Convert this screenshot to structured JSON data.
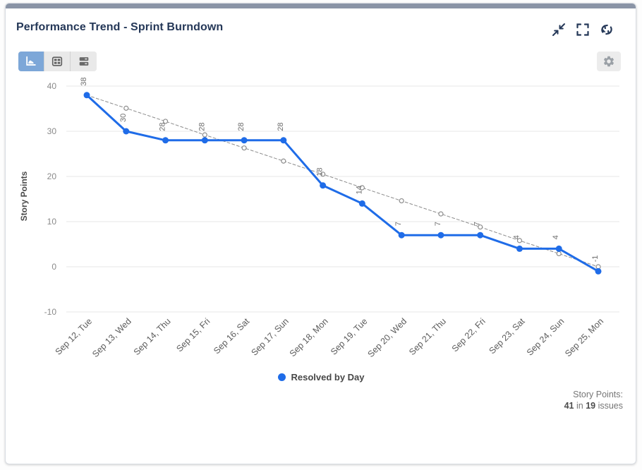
{
  "header": {
    "title": "Performance Trend - Sprint Burndown"
  },
  "toolbar": {
    "views": [
      "chart",
      "table",
      "list"
    ],
    "active_view": "chart"
  },
  "chart_data": {
    "type": "line",
    "title": "Performance Trend - Sprint Burndown",
    "categories": [
      "Sep 12, Tue",
      "Sep 13, Wed",
      "Sep 14, Thu",
      "Sep 15, Fri",
      "Sep 16, Sat",
      "Sep 17, Sun",
      "Sep 18, Mon",
      "Sep 19, Tue",
      "Sep 20, Wed",
      "Sep 21, Thu",
      "Sep 22, Fri",
      "Sep 23, Sat",
      "Sep 24, Sun",
      "Sep 25, Mon"
    ],
    "series": [
      {
        "name": "Resolved by Day",
        "color": "#1f6ce8",
        "style": "solid",
        "data_labels": true,
        "values": [
          38,
          30,
          28,
          28,
          28,
          28,
          18,
          14,
          7,
          7,
          7,
          4,
          4,
          -1
        ]
      },
      {
        "name": "Guideline",
        "color": "#8c8c8c",
        "style": "dashed",
        "data_labels": false,
        "values": [
          38,
          35.1,
          32.2,
          29.2,
          26.3,
          23.4,
          20.5,
          17.5,
          14.6,
          11.7,
          8.8,
          5.8,
          2.9,
          0
        ]
      }
    ],
    "ylabel": "Story Points",
    "yticks": [
      40,
      30,
      20,
      10,
      0,
      -10
    ],
    "ylim": [
      -10,
      40
    ],
    "grid": "horizontal",
    "legend_position": "bottom"
  },
  "legend": {
    "label": "Resolved by Day",
    "color": "#1f6ce8"
  },
  "summary": {
    "label": "Story Points:",
    "points": "41",
    "in_sep": " in ",
    "issues": "19",
    "issues_suffix": " issues"
  },
  "colors": {
    "accent_bar": "#8a94a6",
    "title_text": "#253858",
    "active_view_bg": "#7da7d8",
    "line_blue": "#1f6ce8",
    "guideline_gray": "#8c8c8c"
  }
}
